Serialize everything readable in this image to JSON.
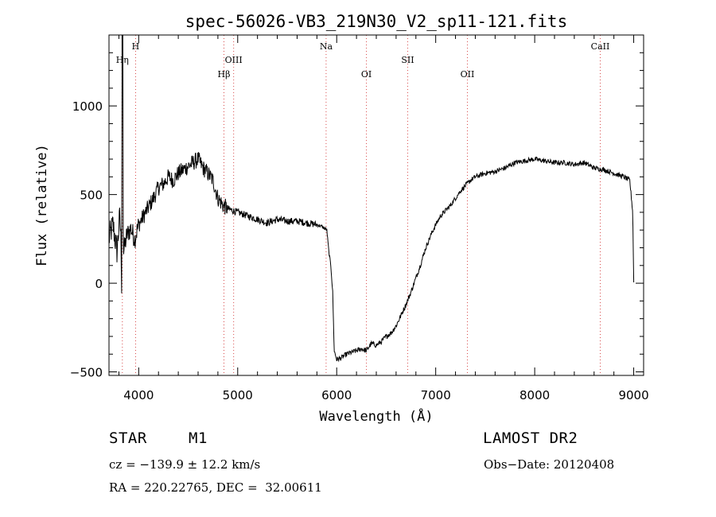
{
  "chart_data": {
    "type": "line",
    "title": "spec-56026-VB3_219N30_V2_sp11-121.fits",
    "xlabel": "Wavelength (Å)",
    "ylabel": "Flux (relative)",
    "xlim": [
      3700,
      9100
    ],
    "ylim": [
      -520,
      1400
    ],
    "xticks": [
      4000,
      5000,
      6000,
      7000,
      8000,
      9000
    ],
    "yticks": [
      -500,
      0,
      500,
      1000
    ],
    "grid": false,
    "lines": [
      {
        "label": "Hη",
        "wavelength": 3835,
        "tier": 2
      },
      {
        "label": "H",
        "wavelength": 3969,
        "tier": 1
      },
      {
        "label": "Hβ",
        "wavelength": 4861,
        "tier": 3
      },
      {
        "label": "OIII",
        "wavelength": 4959,
        "tier": 2
      },
      {
        "label": "Na",
        "wavelength": 5893,
        "tier": 1
      },
      {
        "label": "OI",
        "wavelength": 6300,
        "tier": 3
      },
      {
        "label": "SII",
        "wavelength": 6717,
        "tier": 2
      },
      {
        "label": "OII",
        "wavelength": 7320,
        "tier": 3
      },
      {
        "label": "CaII",
        "wavelength": 8662,
        "tier": 1
      }
    ],
    "series": [
      {
        "name": "flux",
        "x": [
          3700,
          3740,
          3780,
          3810,
          3822,
          3830,
          3836,
          3845,
          3880,
          3920,
          3960,
          4000,
          4050,
          4100,
          4150,
          4200,
          4250,
          4300,
          4350,
          4400,
          4450,
          4500,
          4550,
          4600,
          4650,
          4700,
          4750,
          4800,
          4850,
          4900,
          4950,
          5000,
          5100,
          5200,
          5300,
          5400,
          5500,
          5600,
          5700,
          5800,
          5850,
          5900,
          5920,
          5940,
          5960,
          5975,
          6000,
          6050,
          6100,
          6150,
          6200,
          6250,
          6300,
          6350,
          6400,
          6450,
          6500,
          6550,
          6600,
          6650,
          6700,
          6750,
          6800,
          6850,
          6900,
          6950,
          7000,
          7050,
          7100,
          7150,
          7200,
          7250,
          7300,
          7350,
          7400,
          7450,
          7500,
          7550,
          7600,
          7700,
          7800,
          7900,
          8000,
          8100,
          8200,
          8300,
          8400,
          8500,
          8600,
          8700,
          8800,
          8900,
          8960,
          8990,
          9000
        ],
        "y": [
          250,
          330,
          180,
          380,
          230,
          -80,
          1400,
          170,
          270,
          310,
          250,
          330,
          380,
          430,
          480,
          540,
          560,
          600,
          580,
          620,
          640,
          660,
          680,
          700,
          650,
          620,
          580,
          480,
          440,
          420,
          410,
          400,
          380,
          360,
          340,
          360,
          350,
          350,
          340,
          330,
          320,
          300,
          180,
          100,
          -50,
          -380,
          -430,
          -420,
          -400,
          -390,
          -380,
          -370,
          -380,
          -340,
          -350,
          -330,
          -300,
          -280,
          -240,
          -180,
          -120,
          -50,
          30,
          110,
          200,
          270,
          330,
          380,
          410,
          440,
          480,
          520,
          550,
          580,
          600,
          610,
          620,
          625,
          630,
          650,
          680,
          690,
          700,
          690,
          680,
          680,
          670,
          680,
          650,
          640,
          620,
          600,
          580,
          400,
          0
        ]
      }
    ]
  },
  "footer": {
    "object_type": "STAR",
    "subclass": "M1",
    "survey": "LAMOST DR2",
    "redshift": "cz = −139.9 ± 12.2 km/s",
    "obs_date": "Obs−Date: 20120408",
    "coordinates": "RA = 220.22765, DEC =  32.00611"
  }
}
